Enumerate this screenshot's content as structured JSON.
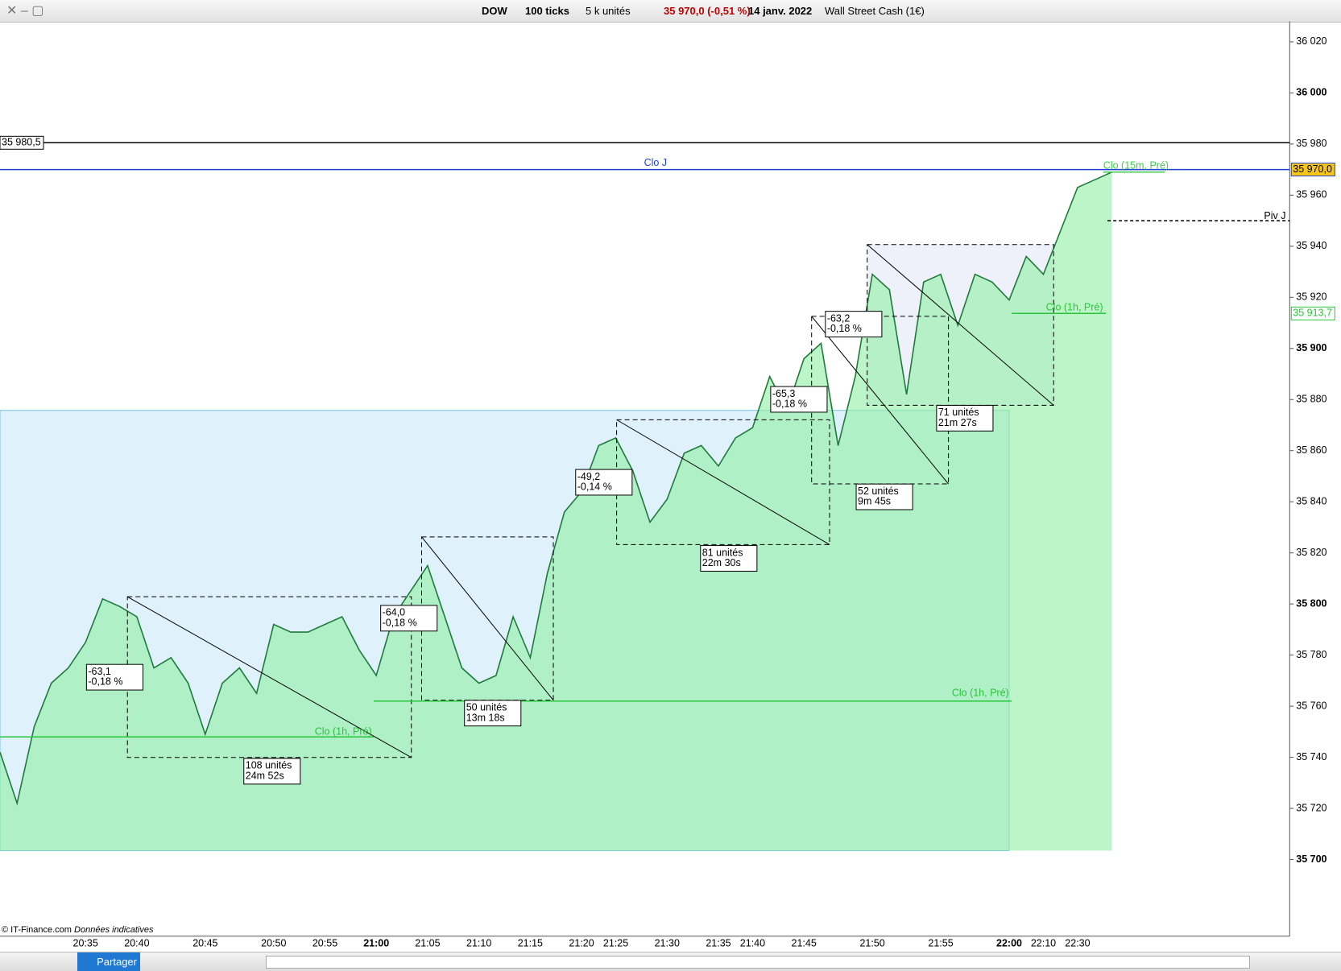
{
  "toolbar": {
    "symbol": "DOW",
    "interval": "100 ticks",
    "units": "5 k unités",
    "price": "35 970,0 (-0,51 %)",
    "date": "14 janv. 2022",
    "instrument": "Wall Street Cash (1€)"
  },
  "footer": {
    "copyright": "© IT-Finance.com",
    "note": "Données indicatives",
    "share": "Partager"
  },
  "chart_data": {
    "type": "line",
    "categories": [
      null,
      null,
      null,
      null,
      null,
      "20:35",
      null,
      null,
      "20:40",
      null,
      null,
      null,
      "20:45",
      null,
      null,
      null,
      "20:50",
      null,
      null,
      "20:55",
      null,
      null,
      "21:00",
      null,
      null,
      "21:05",
      null,
      null,
      "21:10",
      null,
      null,
      "21:15",
      null,
      null,
      "21:20",
      null,
      "21:25",
      null,
      null,
      "21:30",
      null,
      null,
      "21:35",
      null,
      "21:40",
      null,
      null,
      "21:45",
      null,
      null,
      null,
      "21:50",
      null,
      null,
      null,
      "21:55",
      null,
      null,
      null,
      "22:00",
      null,
      "22:10",
      null,
      "22:30",
      null,
      null
    ],
    "series": [
      {
        "name": "DOW",
        "color": "#1f7a3c",
        "values": [
          35742,
          35722,
          35752,
          35769,
          35775,
          35785,
          35802,
          35799,
          35795,
          35775,
          35779,
          35769,
          35749,
          35769,
          35775,
          35765,
          35792,
          35789,
          35789,
          35792,
          35795,
          35782,
          35772,
          35795,
          35805,
          35815,
          35795,
          35775,
          35769,
          35772,
          35795,
          35779,
          35812,
          35836,
          35844,
          35862,
          35865,
          35852,
          35832,
          35841,
          35859,
          35862,
          35854,
          35865,
          35869,
          35889,
          35876,
          35896,
          35902,
          35862,
          35889,
          35929,
          35923,
          35882,
          35926,
          35929,
          35909,
          35929,
          35926,
          35919,
          35936,
          35929,
          35946,
          35963,
          35966,
          35969
        ]
      }
    ],
    "ylim": [
      35670,
      36028
    ],
    "yticks": [
      {
        "value": 35700,
        "label": "35 700"
      },
      {
        "value": 35720,
        "label": "35 720"
      },
      {
        "value": 35740,
        "label": "35 740"
      },
      {
        "value": 35760,
        "label": "35 760"
      },
      {
        "value": 35780,
        "label": "35 780"
      },
      {
        "value": 35800,
        "label": "35 800"
      },
      {
        "value": 35820,
        "label": "35 820"
      },
      {
        "value": 35840,
        "label": "35 840"
      },
      {
        "value": 35860,
        "label": "35 860"
      },
      {
        "value": 35880,
        "label": "35 880"
      },
      {
        "value": 35900,
        "label": "35 900"
      },
      {
        "value": 35920,
        "label": "35 920"
      },
      {
        "value": 35940,
        "label": "35 940"
      },
      {
        "value": 35960,
        "label": "35 960"
      },
      {
        "value": 35980,
        "label": "35 980"
      },
      {
        "value": 36000,
        "label": "36 000"
      },
      {
        "value": 36020,
        "label": "36 020"
      }
    ],
    "levels": [
      {
        "value": 35980.5,
        "label": "35 980,5",
        "color": "#000000"
      },
      {
        "name": "Clo J",
        "value": 35970,
        "label": "35 970,0",
        "color": "#1f3fd6"
      },
      {
        "name": "Piv J",
        "value": 35950,
        "color": "#000000"
      },
      {
        "name": "Clo (15m, Pré)",
        "value": 35969,
        "color": "#3ccf4e"
      },
      {
        "name": "Clo (1h, Pré)",
        "value": 35913.7,
        "label": "35 913,7",
        "color": "#2ac43a"
      },
      {
        "name": "Clo (1h, Pré)",
        "value": 35762,
        "color": "#2ac43a"
      },
      {
        "name": "Clo (1h, Pré)",
        "value": 35748,
        "color": "#2ac43a"
      }
    ],
    "annotations": [
      [
        "-63,1",
        "-0,18 %"
      ],
      [
        "108 unités",
        "24m 52s"
      ],
      [
        "-64,0",
        "-0,18 %"
      ],
      [
        "50 unités",
        "13m 18s"
      ],
      [
        "-49,2",
        "-0,14 %"
      ],
      [
        "81 unités",
        "22m 30s"
      ],
      [
        "-65,3",
        "-0,18 %"
      ],
      [
        "52 unités",
        "9m 45s"
      ],
      [
        "-63,2",
        "-0,18 %"
      ],
      [
        "71 unités",
        "21m 27s"
      ]
    ]
  }
}
